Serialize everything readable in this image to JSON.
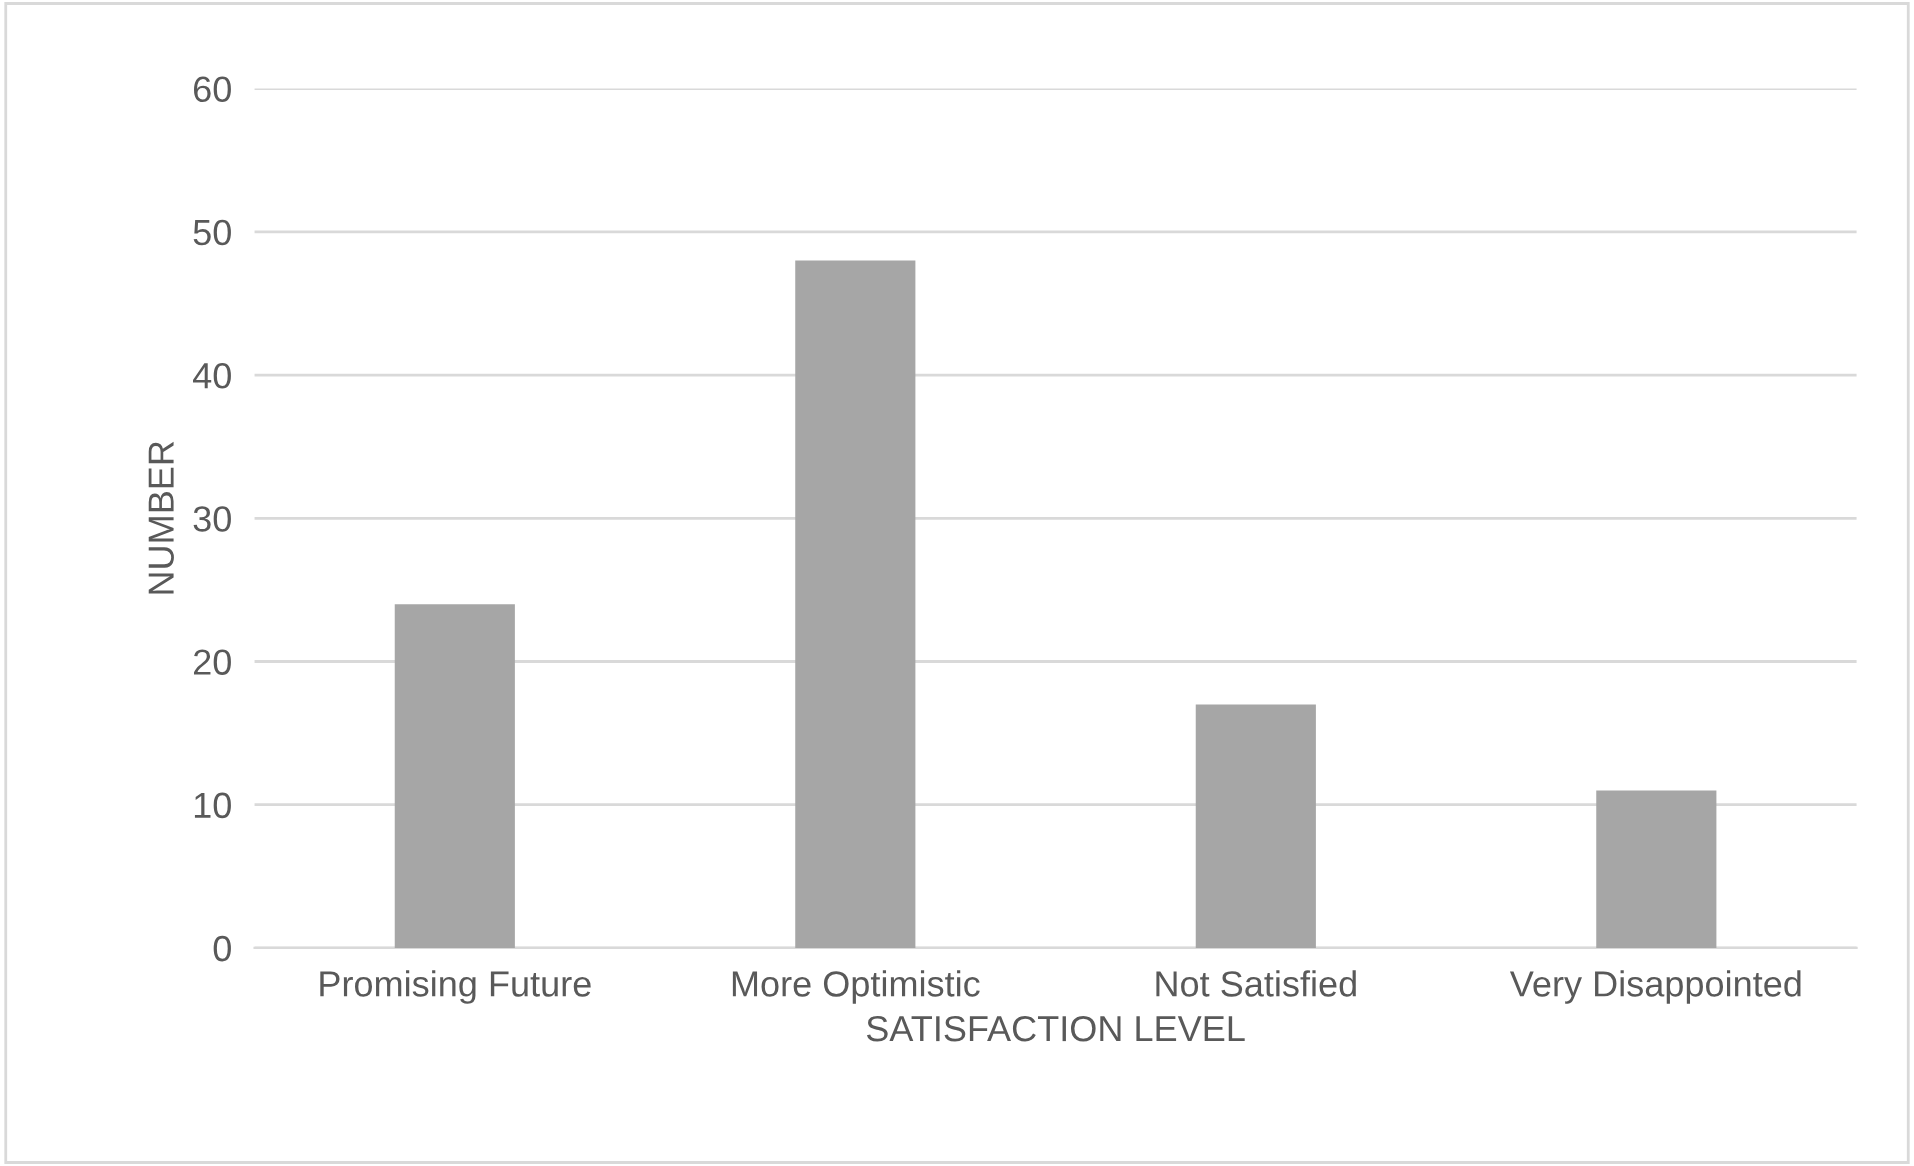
{
  "chart_data": {
    "type": "bar",
    "xlabel": "SATISFACTION LEVEL",
    "ylabel": "NUMBER",
    "categories": [
      "Promising Future",
      "More Optimistic",
      "Not Satisfied",
      "Very Disappointed"
    ],
    "values": [
      24,
      48,
      17,
      11
    ],
    "color": "#a6a6a6",
    "ylim": [
      0,
      60
    ],
    "yticks": [
      0,
      10,
      20,
      30,
      40,
      50,
      60
    ],
    "grid": "y"
  }
}
